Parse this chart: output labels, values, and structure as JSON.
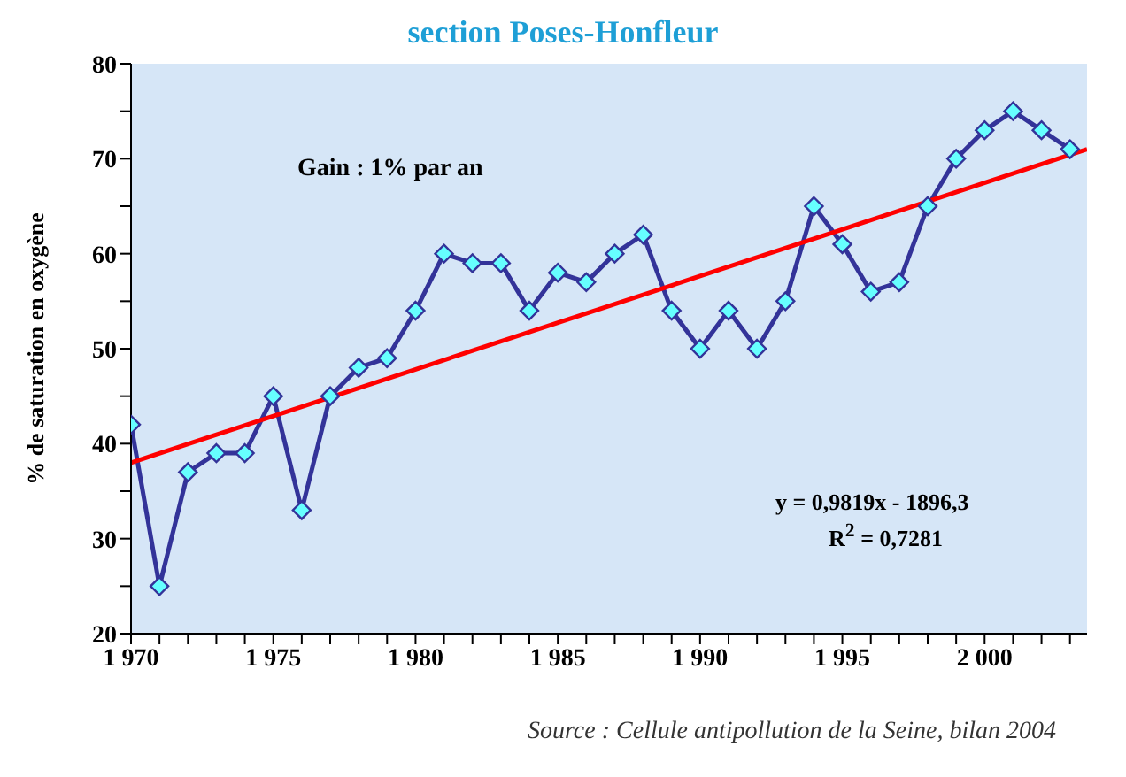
{
  "chart_data": {
    "type": "line",
    "title": "section Poses-Honfleur",
    "ylabel": "% de saturation en oxygène",
    "annotations": [
      "Gain : 1% par an",
      "y = 0,9819x - 1896,3",
      "R$^{2}$ = 0,7281",
      "Source : Cellule antipollution de la Seine, bilan 2004"
    ],
    "series": [
      {
        "color": "#333399",
        "marker": "diamond",
        "x": [
          1970,
          1971,
          1972,
          1973,
          1974,
          1975,
          1976,
          1977,
          1978,
          1979,
          1980,
          1981,
          1982,
          1983,
          1984,
          1985,
          1986,
          1987,
          1988,
          1989,
          1990,
          1991,
          1992,
          1993,
          1994,
          1995,
          1996,
          1997,
          1998,
          1999,
          2000,
          2001,
          2002,
          2003
        ],
        "values": [
          42,
          25,
          37,
          39,
          39,
          45,
          33,
          45,
          48,
          49,
          54,
          60,
          59,
          59,
          54,
          58,
          57,
          60,
          62,
          54,
          50,
          54,
          50,
          55,
          65,
          61,
          56,
          57,
          65,
          70,
          73,
          75,
          73,
          71
        ]
      },
      {
        "color": "#ff0000",
        "marker": "none",
        "x": [
          1970,
          2003.6
        ],
        "values": [
          38.0,
          71.0
        ]
      }
    ],
    "xlim": [
      1970,
      2003.6
    ],
    "xticks": [
      {
        "value": 1970,
        "label": "1 970"
      },
      {
        "value": 1971,
        "label": null
      },
      {
        "value": 1972,
        "label": null
      },
      {
        "value": 1973,
        "label": null
      },
      {
        "value": 1974,
        "label": null
      },
      {
        "value": 1975,
        "label": "1 975"
      },
      {
        "value": 1976,
        "label": null
      },
      {
        "value": 1977,
        "label": null
      },
      {
        "value": 1978,
        "label": null
      },
      {
        "value": 1979,
        "label": null
      },
      {
        "value": 1980,
        "label": "1 980"
      },
      {
        "value": 1981,
        "label": null
      },
      {
        "value": 1982,
        "label": null
      },
      {
        "value": 1983,
        "label": null
      },
      {
        "value": 1984,
        "label": null
      },
      {
        "value": 1985,
        "label": "1 985"
      },
      {
        "value": 1986,
        "label": null
      },
      {
        "value": 1987,
        "label": null
      },
      {
        "value": 1988,
        "label": null
      },
      {
        "value": 1989,
        "label": null
      },
      {
        "value": 1990,
        "label": "1 990"
      },
      {
        "value": 1991,
        "label": null
      },
      {
        "value": 1992,
        "label": null
      },
      {
        "value": 1993,
        "label": null
      },
      {
        "value": 1994,
        "label": null
      },
      {
        "value": 1995,
        "label": "1 995"
      },
      {
        "value": 1996,
        "label": null
      },
      {
        "value": 1997,
        "label": null
      },
      {
        "value": 1998,
        "label": null
      },
      {
        "value": 1999,
        "label": null
      },
      {
        "value": 2000,
        "label": "2 000"
      },
      {
        "value": 2001,
        "label": null
      },
      {
        "value": 2002,
        "label": null
      },
      {
        "value": 2003,
        "label": null
      }
    ],
    "ylim": [
      20,
      80
    ],
    "yticks": [
      20,
      {
        "value": 25,
        "label": null
      },
      30,
      {
        "value": 35,
        "label": null
      },
      40,
      {
        "value": 45,
        "label": null
      },
      50,
      {
        "value": 55,
        "label": null
      },
      60,
      {
        "value": 65,
        "label": null
      },
      70,
      {
        "value": 75,
        "label": null
      },
      80
    ],
    "grid": false
  }
}
